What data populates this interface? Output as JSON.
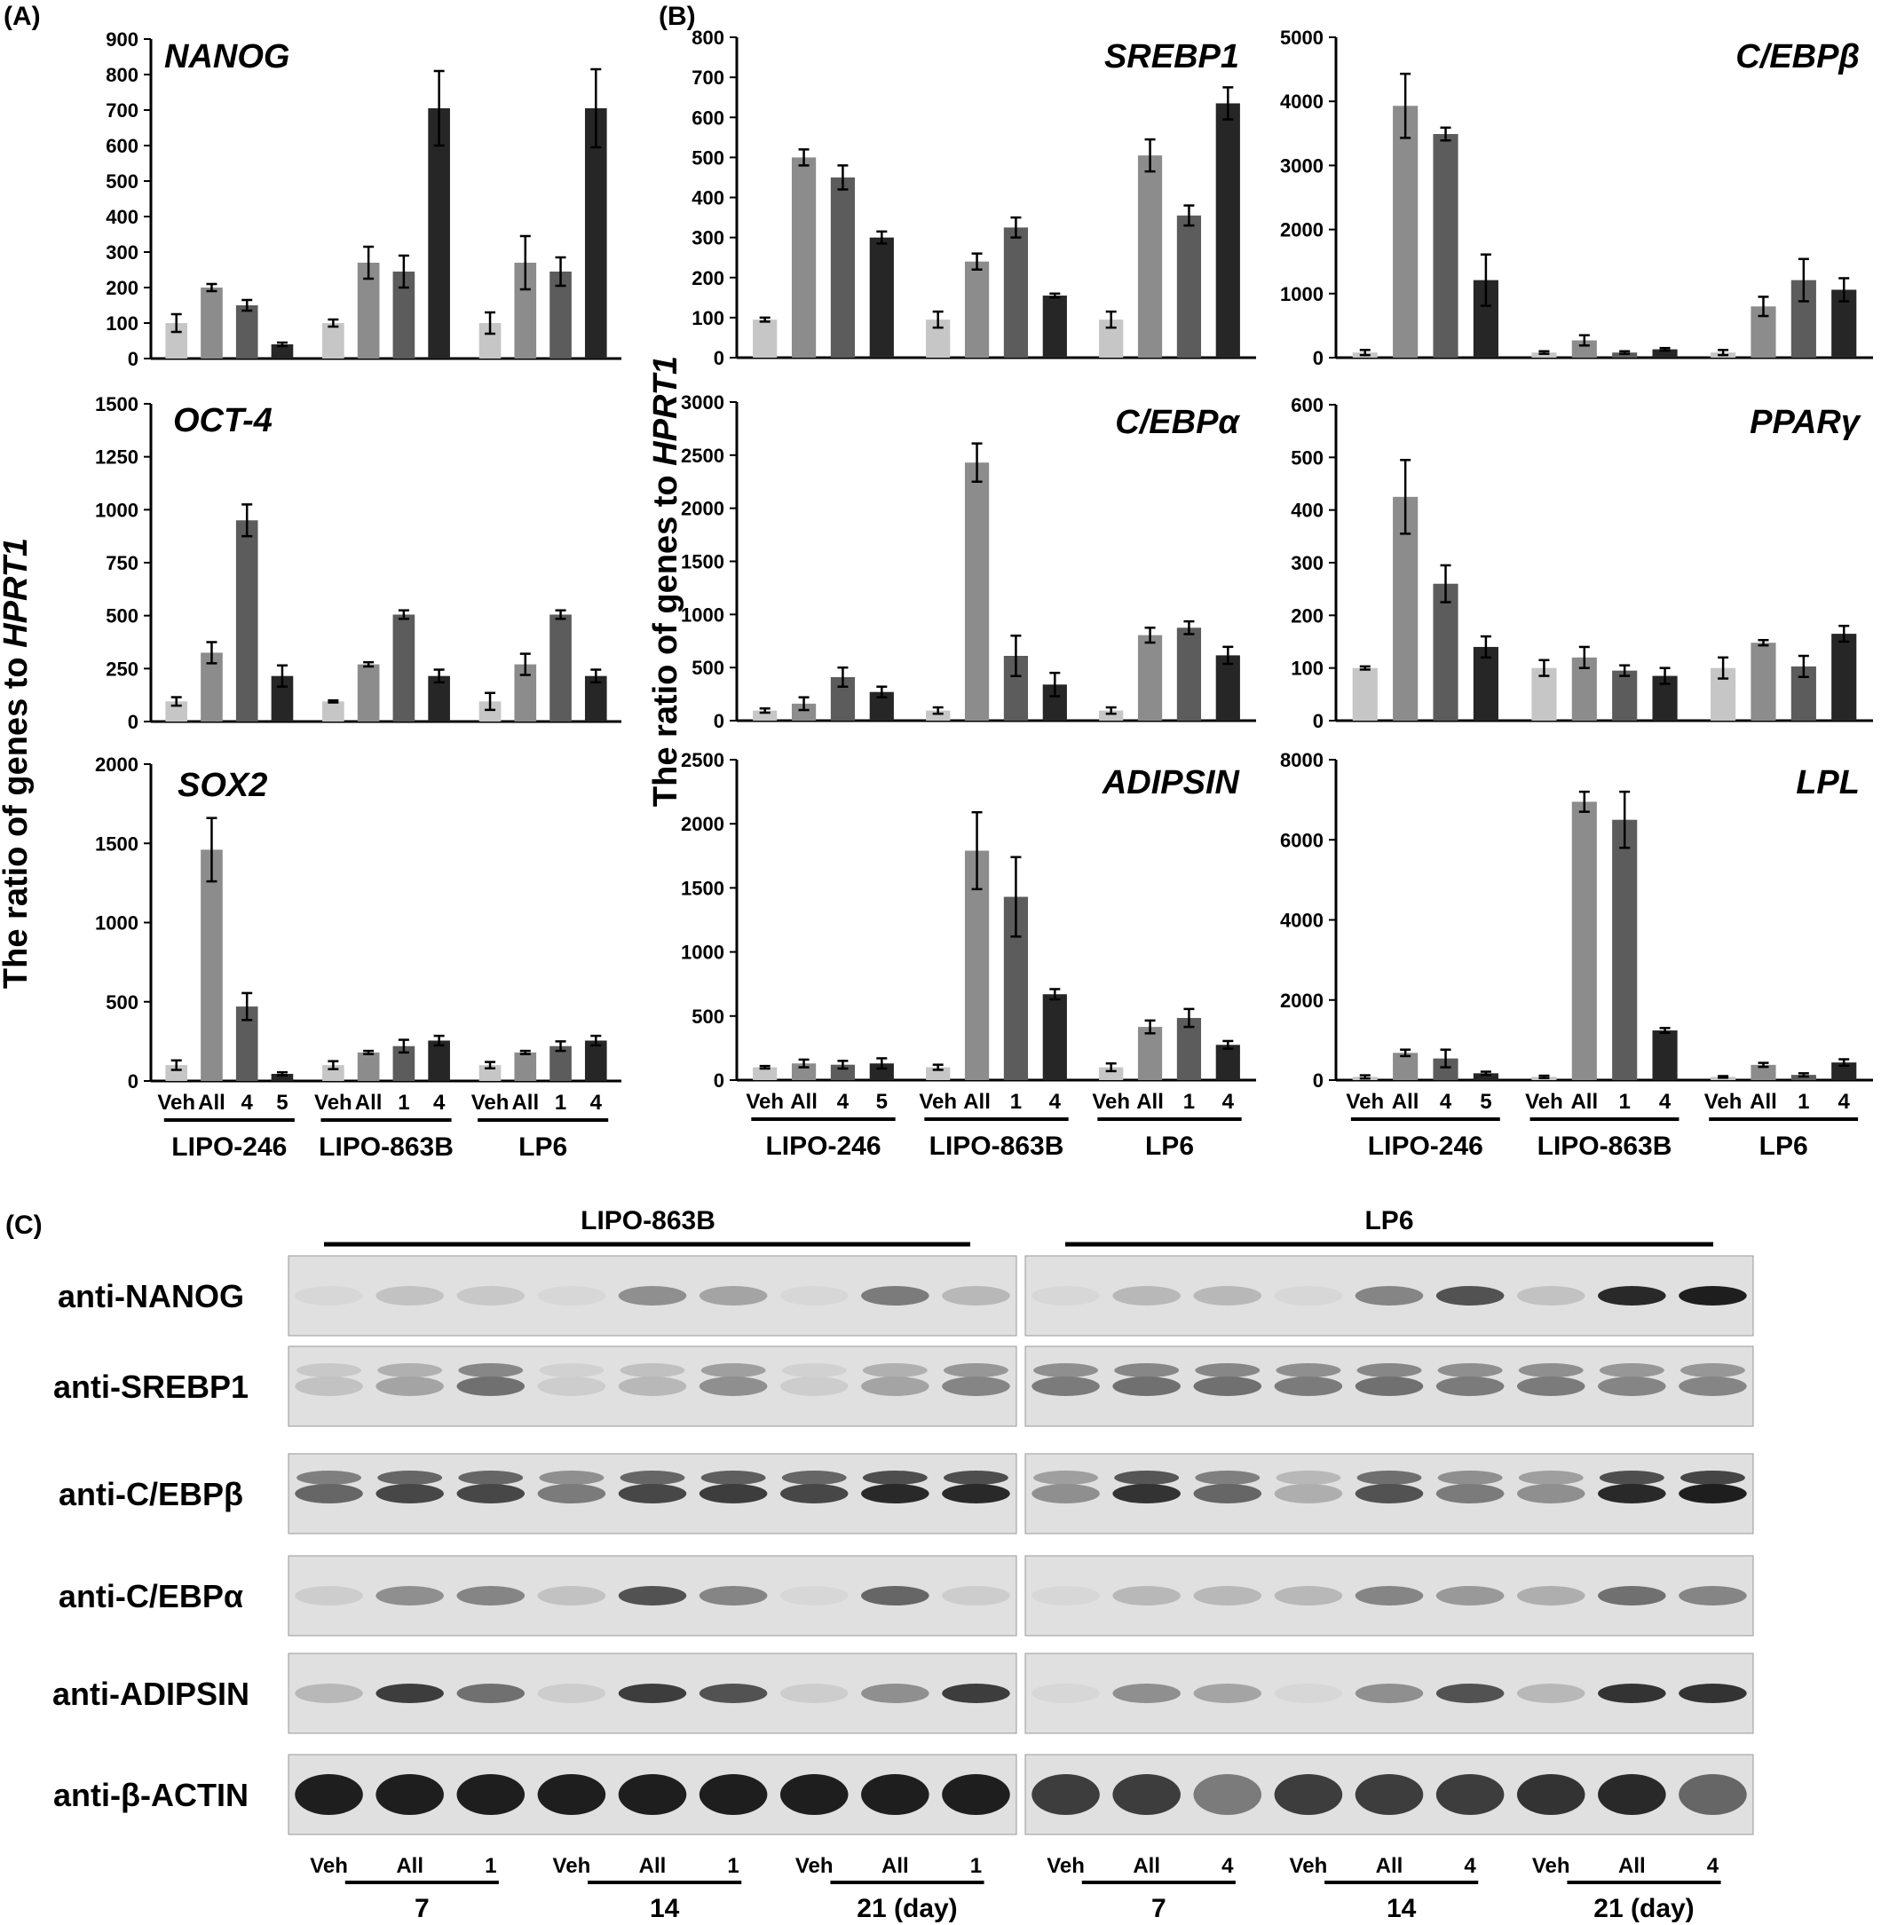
{
  "panel_labels": {
    "a": "(A)",
    "b": "(B)",
    "c": "(C)"
  },
  "y_axis": {
    "prefix": "The ratio of genes to ",
    "emph": "HPRT1"
  },
  "bar_colors": [
    "#c6c6c6",
    "#8c8c8c",
    "#5c5c5c",
    "#262626"
  ],
  "chart_data": [
    {
      "id": "nanog",
      "type": "bar",
      "title": "NANOG",
      "ylim": [
        0,
        900
      ],
      "ticks": [
        "0",
        "100",
        "200",
        "300",
        "400",
        "500",
        "600",
        "700",
        "800",
        "900"
      ],
      "groups": [
        {
          "name": "LIPO-246",
          "labels": [
            "Veh",
            "All",
            "4",
            "5"
          ],
          "values": [
            100,
            200,
            150,
            40
          ],
          "errors": [
            25,
            10,
            15,
            5
          ]
        },
        {
          "name": "LIPO-863B",
          "labels": [
            "Veh",
            "All",
            "1",
            "4"
          ],
          "values": [
            100,
            270,
            245,
            705
          ],
          "errors": [
            10,
            45,
            45,
            105
          ]
        },
        {
          "name": "LP6",
          "labels": [
            "Veh",
            "All",
            "1",
            "4"
          ],
          "values": [
            100,
            270,
            245,
            705
          ],
          "errors": [
            30,
            75,
            40,
            110
          ]
        }
      ]
    },
    {
      "id": "oct4",
      "type": "bar",
      "title": "OCT-4",
      "ylim": [
        0,
        1500
      ],
      "ticks": [
        "0",
        "250",
        "500",
        "750",
        "1000",
        "1250",
        "1500"
      ],
      "groups": [
        {
          "name": "LIPO-246",
          "labels": [
            "Veh",
            "All",
            "4",
            "5"
          ],
          "values": [
            95,
            325,
            950,
            215
          ],
          "errors": [
            20,
            50,
            75,
            50
          ]
        },
        {
          "name": "LIPO-863B",
          "labels": [
            "Veh",
            "All",
            "1",
            "4"
          ],
          "values": [
            95,
            270,
            505,
            215
          ],
          "errors": [
            5,
            10,
            20,
            30
          ]
        },
        {
          "name": "LP6",
          "labels": [
            "Veh",
            "All",
            "1",
            "4"
          ],
          "values": [
            95,
            270,
            505,
            215
          ],
          "errors": [
            40,
            50,
            20,
            30
          ]
        }
      ]
    },
    {
      "id": "sox2",
      "type": "bar",
      "title": "SOX2",
      "ylim": [
        0,
        2000
      ],
      "ticks": [
        "0",
        "500",
        "1000",
        "1500",
        "2000"
      ],
      "groups": [
        {
          "name": "LIPO-246",
          "labels": [
            "Veh",
            "All",
            "4",
            "5"
          ],
          "values": [
            100,
            1460,
            470,
            45
          ],
          "errors": [
            30,
            200,
            85,
            10
          ]
        },
        {
          "name": "LIPO-863B",
          "labels": [
            "Veh",
            "All",
            "1",
            "4"
          ],
          "values": [
            100,
            180,
            220,
            255
          ],
          "errors": [
            25,
            10,
            40,
            30
          ]
        },
        {
          "name": "LP6",
          "labels": [
            "Veh",
            "All",
            "1",
            "4"
          ],
          "values": [
            100,
            180,
            220,
            255
          ],
          "errors": [
            20,
            10,
            30,
            30
          ]
        }
      ]
    },
    {
      "id": "srebp1",
      "type": "bar",
      "title": "SREBP1",
      "ylim": [
        0,
        800
      ],
      "ticks": [
        "0",
        "100",
        "200",
        "300",
        "400",
        "500",
        "600",
        "700",
        "800"
      ],
      "groups": [
        {
          "name": "LIPO-246",
          "labels": [
            "Veh",
            "All",
            "4",
            "5"
          ],
          "values": [
            95,
            500,
            450,
            300
          ],
          "errors": [
            5,
            20,
            30,
            15
          ]
        },
        {
          "name": "LIPO-863B",
          "labels": [
            "Veh",
            "All",
            "1",
            "4"
          ],
          "values": [
            95,
            240,
            325,
            155
          ],
          "errors": [
            20,
            20,
            25,
            5
          ]
        },
        {
          "name": "LP6",
          "labels": [
            "Veh",
            "All",
            "1",
            "4"
          ],
          "values": [
            95,
            505,
            355,
            635
          ],
          "errors": [
            20,
            40,
            25,
            40
          ]
        }
      ]
    },
    {
      "id": "cebpb",
      "type": "bar",
      "title": "C/EBPβ",
      "ylim": [
        0,
        5000
      ],
      "ticks": [
        "0",
        "1000",
        "2000",
        "3000",
        "4000",
        "5000"
      ],
      "groups": [
        {
          "name": "LIPO-246",
          "labels": [
            "Veh",
            "All",
            "4",
            "5"
          ],
          "values": [
            80,
            3930,
            3490,
            1210
          ],
          "errors": [
            40,
            500,
            100,
            400
          ]
        },
        {
          "name": "LIPO-863B",
          "labels": [
            "Veh",
            "All",
            "1",
            "4"
          ],
          "values": [
            80,
            270,
            80,
            130
          ],
          "errors": [
            20,
            80,
            20,
            20
          ]
        },
        {
          "name": "LP6",
          "labels": [
            "Veh",
            "All",
            "1",
            "4"
          ],
          "values": [
            80,
            800,
            1210,
            1060
          ],
          "errors": [
            40,
            150,
            330,
            180
          ]
        }
      ]
    },
    {
      "id": "cebpa",
      "type": "bar",
      "title": "C/EBPα",
      "ylim": [
        0,
        3000
      ],
      "ticks": [
        "0",
        "500",
        "1000",
        "1500",
        "2000",
        "2500",
        "3000"
      ],
      "groups": [
        {
          "name": "LIPO-246",
          "labels": [
            "Veh",
            "All",
            "4",
            "5"
          ],
          "values": [
            95,
            160,
            410,
            270
          ],
          "errors": [
            20,
            60,
            90,
            50
          ]
        },
        {
          "name": "LIPO-863B",
          "labels": [
            "Veh",
            "All",
            "1",
            "4"
          ],
          "values": [
            95,
            2430,
            610,
            340
          ],
          "errors": [
            30,
            180,
            190,
            110
          ]
        },
        {
          "name": "LP6",
          "labels": [
            "Veh",
            "All",
            "1",
            "4"
          ],
          "values": [
            95,
            805,
            875,
            615
          ],
          "errors": [
            30,
            70,
            60,
            80
          ]
        }
      ]
    },
    {
      "id": "ppar",
      "type": "bar",
      "title": "PPARγ",
      "ylim": [
        0,
        600
      ],
      "ticks": [
        "0",
        "100",
        "200",
        "300",
        "400",
        "500",
        "600"
      ],
      "groups": [
        {
          "name": "LIPO-246",
          "labels": [
            "Veh",
            "All",
            "4",
            "5"
          ],
          "values": [
            100,
            425,
            260,
            140
          ],
          "errors": [
            3,
            70,
            35,
            20
          ]
        },
        {
          "name": "LIPO-863B",
          "labels": [
            "Veh",
            "All",
            "1",
            "4"
          ],
          "values": [
            100,
            120,
            95,
            85
          ],
          "errors": [
            15,
            20,
            10,
            15
          ]
        },
        {
          "name": "LP6",
          "labels": [
            "Veh",
            "All",
            "1",
            "4"
          ],
          "values": [
            100,
            148,
            103,
            165
          ],
          "errors": [
            20,
            5,
            20,
            15
          ]
        }
      ]
    },
    {
      "id": "adipsin",
      "type": "bar",
      "title": "ADIPSIN",
      "ylim": [
        0,
        2500
      ],
      "ticks": [
        "0",
        "500",
        "1000",
        "1500",
        "2000",
        "2500"
      ],
      "groups": [
        {
          "name": "LIPO-246",
          "labels": [
            "Veh",
            "All",
            "4",
            "5"
          ],
          "values": [
            100,
            130,
            120,
            130
          ],
          "errors": [
            10,
            30,
            30,
            40
          ]
        },
        {
          "name": "LIPO-863B",
          "labels": [
            "Veh",
            "All",
            "1",
            "4"
          ],
          "values": [
            100,
            1790,
            1430,
            670
          ],
          "errors": [
            20,
            300,
            310,
            40
          ]
        },
        {
          "name": "LP6",
          "labels": [
            "Veh",
            "All",
            "1",
            "4"
          ],
          "values": [
            100,
            415,
            485,
            275
          ],
          "errors": [
            30,
            50,
            70,
            30
          ]
        }
      ]
    },
    {
      "id": "lpl",
      "type": "bar",
      "title": "LPL",
      "ylim": [
        0,
        8000
      ],
      "ticks": [
        "0",
        "2000",
        "4000",
        "6000",
        "8000"
      ],
      "groups": [
        {
          "name": "LIPO-246",
          "labels": [
            "Veh",
            "All",
            "4",
            "5"
          ],
          "values": [
            80,
            680,
            540,
            170
          ],
          "errors": [
            40,
            80,
            220,
            40
          ]
        },
        {
          "name": "LIPO-863B",
          "labels": [
            "Veh",
            "All",
            "1",
            "4"
          ],
          "values": [
            80,
            6950,
            6500,
            1240
          ],
          "errors": [
            30,
            250,
            700,
            60
          ]
        },
        {
          "name": "LP6",
          "labels": [
            "Veh",
            "All",
            "1",
            "4"
          ],
          "values": [
            80,
            380,
            130,
            440
          ],
          "errors": [
            20,
            50,
            40,
            80
          ]
        }
      ]
    }
  ],
  "western": {
    "lipo_title": "LIPO-863B",
    "lp6_title": "LP6",
    "antibodies": [
      "anti-NANOG",
      "anti-SREBP1",
      "anti-C/EBPβ",
      "anti-C/EBPα",
      "anti-ADIPSIN",
      "anti-β-ACTIN"
    ],
    "lipo_lanes": [
      "Veh",
      "All",
      "1",
      "Veh",
      "All",
      "1",
      "Veh",
      "All",
      "1"
    ],
    "lp6_lanes": [
      "Veh",
      "All",
      "4",
      "Veh",
      "All",
      "4",
      "Veh",
      "All",
      "4"
    ],
    "days": [
      "7",
      "14",
      "21 (day)"
    ],
    "lipo_bands": [
      [
        0.05,
        0.15,
        0.12,
        0.05,
        0.4,
        0.3,
        0.05,
        0.5,
        0.2
      ],
      [
        0.15,
        0.3,
        0.55,
        0.1,
        0.2,
        0.4,
        0.1,
        0.3,
        0.45
      ],
      [
        0.6,
        0.75,
        0.75,
        0.5,
        0.75,
        0.8,
        0.75,
        0.9,
        0.9
      ],
      [
        0.1,
        0.4,
        0.45,
        0.15,
        0.7,
        0.45,
        0.05,
        0.6,
        0.1
      ],
      [
        0.2,
        0.8,
        0.55,
        0.1,
        0.8,
        0.7,
        0.1,
        0.4,
        0.8
      ],
      [
        0.95,
        0.95,
        0.95,
        0.95,
        0.95,
        0.95,
        0.95,
        0.95,
        0.95
      ]
    ],
    "lp6_bands": [
      [
        0.05,
        0.2,
        0.2,
        0.05,
        0.45,
        0.7,
        0.15,
        0.9,
        0.95
      ],
      [
        0.5,
        0.55,
        0.55,
        0.5,
        0.55,
        0.5,
        0.5,
        0.45,
        0.45
      ],
      [
        0.4,
        0.85,
        0.6,
        0.25,
        0.7,
        0.5,
        0.4,
        0.9,
        0.95
      ],
      [
        0.05,
        0.2,
        0.2,
        0.2,
        0.45,
        0.35,
        0.25,
        0.55,
        0.45
      ],
      [
        0.05,
        0.4,
        0.3,
        0.05,
        0.4,
        0.7,
        0.2,
        0.85,
        0.85
      ],
      [
        0.8,
        0.8,
        0.5,
        0.8,
        0.8,
        0.8,
        0.85,
        0.9,
        0.6
      ]
    ]
  }
}
